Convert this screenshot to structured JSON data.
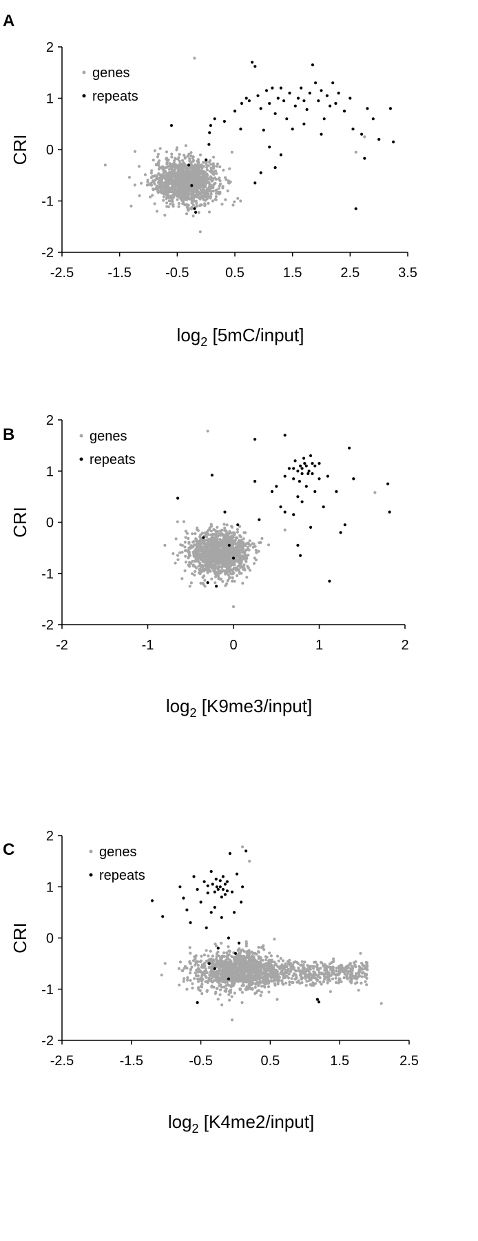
{
  "colors": {
    "genes": "#a6a6a6",
    "repeats": "#000000",
    "axis": "#000000"
  },
  "chart_data": [
    {
      "panel": "A",
      "type": "scatter",
      "title": "",
      "xlabel_main": "log",
      "xlabel_sub": "2",
      "xlabel_rest": " [5mC/input]",
      "ylabel": "CRI",
      "xlim": [
        -2.5,
        3.5
      ],
      "ylim": [
        -2,
        2
      ],
      "xticks": [
        "-2.5",
        "-1.5",
        "-0.5",
        "0.5",
        "1.5",
        "2.5",
        "3.5"
      ],
      "yticks": [
        "2",
        "1",
        "0",
        "-1",
        "-2"
      ],
      "legend": [
        "genes",
        "repeats"
      ],
      "legend_position": "top-left",
      "genes_cluster": {
        "center": [
          -0.35,
          -0.62
        ],
        "spread": [
          0.28,
          0.22
        ],
        "count": 1200
      },
      "genes_outliers": [
        [
          -1.75,
          -0.3
        ],
        [
          -0.2,
          1.78
        ],
        [
          -0.1,
          -1.6
        ],
        [
          0.45,
          -0.05
        ],
        [
          2.6,
          -0.05
        ],
        [
          2.75,
          0.25
        ],
        [
          -0.85,
          -1.2
        ],
        [
          0.3,
          -0.4
        ],
        [
          0.55,
          -0.95
        ],
        [
          -1.3,
          -1.1
        ]
      ],
      "repeats": [
        [
          -0.6,
          0.47
        ],
        [
          -0.3,
          -0.3
        ],
        [
          -0.25,
          -0.7
        ],
        [
          -0.2,
          -1.15
        ],
        [
          -0.18,
          -1.22
        ],
        [
          0.05,
          0.1
        ],
        [
          0.06,
          0.33
        ],
        [
          0.08,
          0.47
        ],
        [
          0.0,
          -0.2
        ],
        [
          0.15,
          0.6
        ],
        [
          0.32,
          0.55
        ],
        [
          0.5,
          0.75
        ],
        [
          0.62,
          0.9
        ],
        [
          0.7,
          1.0
        ],
        [
          0.75,
          0.95
        ],
        [
          0.8,
          1.7
        ],
        [
          0.85,
          1.62
        ],
        [
          0.9,
          1.05
        ],
        [
          0.95,
          0.8
        ],
        [
          1.0,
          0.38
        ],
        [
          1.05,
          1.15
        ],
        [
          1.1,
          0.9
        ],
        [
          1.15,
          1.2
        ],
        [
          1.2,
          0.7
        ],
        [
          1.25,
          1.0
        ],
        [
          1.3,
          1.2
        ],
        [
          1.35,
          0.95
        ],
        [
          1.4,
          0.6
        ],
        [
          1.45,
          1.1
        ],
        [
          1.5,
          0.4
        ],
        [
          1.55,
          0.85
        ],
        [
          1.6,
          1.0
        ],
        [
          1.65,
          1.2
        ],
        [
          1.7,
          0.95
        ],
        [
          1.75,
          0.78
        ],
        [
          1.8,
          1.1
        ],
        [
          1.85,
          1.65
        ],
        [
          1.9,
          1.3
        ],
        [
          1.95,
          0.95
        ],
        [
          2.0,
          1.15
        ],
        [
          2.05,
          0.6
        ],
        [
          2.1,
          1.05
        ],
        [
          2.15,
          0.85
        ],
        [
          2.2,
          1.3
        ],
        [
          2.25,
          0.9
        ],
        [
          2.3,
          1.1
        ],
        [
          2.4,
          0.75
        ],
        [
          2.5,
          1.0
        ],
        [
          2.55,
          0.4
        ],
        [
          2.6,
          -1.15
        ],
        [
          2.7,
          0.3
        ],
        [
          2.75,
          -0.17
        ],
        [
          2.8,
          0.8
        ],
        [
          2.9,
          0.6
        ],
        [
          3.0,
          0.2
        ],
        [
          3.2,
          0.8
        ],
        [
          3.25,
          0.15
        ],
        [
          1.3,
          -0.1
        ],
        [
          1.1,
          0.05
        ],
        [
          1.2,
          -0.35
        ],
        [
          0.85,
          -0.65
        ],
        [
          0.95,
          -0.45
        ],
        [
          1.7,
          0.5
        ],
        [
          0.6,
          0.4
        ],
        [
          2.0,
          0.3
        ]
      ]
    },
    {
      "panel": "B",
      "type": "scatter",
      "title": "",
      "xlabel_main": "log",
      "xlabel_sub": "2",
      "xlabel_rest": " [K9me3/input]",
      "ylabel": "CRI",
      "xlim": [
        -2,
        2
      ],
      "ylim": [
        -2,
        2
      ],
      "xticks": [
        "-2",
        "-1",
        "0",
        "1",
        "2"
      ],
      "yticks": [
        "2",
        "1",
        "0",
        "-1",
        "-2"
      ],
      "legend": [
        "genes",
        "repeats"
      ],
      "legend_position": "top-left",
      "genes_cluster": {
        "center": [
          -0.18,
          -0.62
        ],
        "spread": [
          0.18,
          0.22
        ],
        "count": 1200
      },
      "genes_outliers": [
        [
          -0.3,
          1.78
        ],
        [
          0.0,
          -1.65
        ],
        [
          -0.8,
          -0.45
        ],
        [
          1.65,
          0.58
        ],
        [
          1.4,
          0.85
        ],
        [
          0.6,
          -0.15
        ],
        [
          0.3,
          -0.4
        ],
        [
          -0.6,
          -1.1
        ]
      ],
      "repeats": [
        [
          -0.65,
          0.47
        ],
        [
          -0.35,
          -0.3
        ],
        [
          -0.25,
          0.92
        ],
        [
          -0.1,
          0.2
        ],
        [
          -0.05,
          -0.45
        ],
        [
          0.0,
          -0.7
        ],
        [
          0.05,
          -0.05
        ],
        [
          -0.3,
          -1.18
        ],
        [
          -0.2,
          -1.25
        ],
        [
          0.25,
          1.62
        ],
        [
          0.25,
          0.8
        ],
        [
          0.3,
          0.05
        ],
        [
          0.45,
          0.6
        ],
        [
          0.5,
          0.7
        ],
        [
          0.55,
          0.3
        ],
        [
          0.6,
          1.7
        ],
        [
          0.6,
          0.9
        ],
        [
          0.65,
          1.05
        ],
        [
          0.7,
          0.85
        ],
        [
          0.72,
          1.2
        ],
        [
          0.75,
          0.5
        ],
        [
          0.78,
          1.1
        ],
        [
          0.8,
          0.95
        ],
        [
          0.82,
          1.25
        ],
        [
          0.85,
          0.7
        ],
        [
          0.88,
          1.0
        ],
        [
          0.9,
          -0.1
        ],
        [
          0.92,
          1.15
        ],
        [
          0.95,
          0.6
        ],
        [
          1.0,
          0.85
        ],
        [
          1.05,
          0.3
        ],
        [
          1.1,
          0.9
        ],
        [
          1.12,
          -1.15
        ],
        [
          1.2,
          0.6
        ],
        [
          1.25,
          -0.2
        ],
        [
          1.3,
          -0.05
        ],
        [
          1.35,
          1.45
        ],
        [
          1.4,
          0.85
        ],
        [
          1.8,
          0.75
        ],
        [
          1.82,
          0.2
        ],
        [
          0.78,
          -0.65
        ],
        [
          0.75,
          -0.45
        ],
        [
          0.7,
          0.15
        ],
        [
          0.8,
          0.4
        ],
        [
          0.9,
          1.3
        ],
        [
          0.95,
          1.1
        ],
        [
          0.6,
          0.2
        ],
        [
          0.85,
          1.1
        ],
        [
          0.8,
          1.05
        ],
        [
          0.75,
          1.0
        ],
        [
          0.87,
          0.95
        ],
        [
          0.83,
          1.15
        ],
        [
          0.7,
          1.05
        ],
        [
          0.92,
          0.95
        ],
        [
          0.77,
          0.8
        ],
        [
          1.0,
          1.15
        ]
      ]
    },
    {
      "panel": "C",
      "type": "scatter",
      "title": "",
      "xlabel_main": "log",
      "xlabel_sub": "2",
      "xlabel_rest": " [K4me2/input]",
      "ylabel": "CRI",
      "xlim": [
        -2.5,
        2.5
      ],
      "ylim": [
        -2,
        2
      ],
      "xticks": [
        "-2.5",
        "-1.5",
        "-0.5",
        "0.5",
        "1.5",
        "2.5"
      ],
      "yticks": [
        "2",
        "1",
        "0",
        "-1",
        "-2"
      ],
      "legend": [
        "genes",
        "repeats"
      ],
      "legend_position": "top-left",
      "genes_cluster": {
        "center": [
          0.0,
          -0.65
        ],
        "spread": [
          0.3,
          0.2
        ],
        "count": 1000
      },
      "genes_band": {
        "x_range": [
          0.2,
          1.9
        ],
        "y_center": -0.68,
        "y_spread": 0.12,
        "count": 500
      },
      "genes_outliers": [
        [
          0.1,
          1.78
        ],
        [
          -0.05,
          -1.6
        ],
        [
          2.1,
          -1.28
        ],
        [
          1.8,
          -0.3
        ],
        [
          0.2,
          1.5
        ],
        [
          -0.7,
          -1.0
        ],
        [
          0.4,
          -0.15
        ],
        [
          0.6,
          -1.2
        ]
      ],
      "repeats": [
        [
          -1.2,
          0.73
        ],
        [
          -1.05,
          0.42
        ],
        [
          -0.8,
          1.0
        ],
        [
          -0.75,
          0.78
        ],
        [
          -0.7,
          0.55
        ],
        [
          -0.65,
          0.3
        ],
        [
          -0.6,
          1.2
        ],
        [
          -0.55,
          0.95
        ],
        [
          -0.55,
          -1.26
        ],
        [
          -0.5,
          0.7
        ],
        [
          -0.45,
          1.1
        ],
        [
          -0.42,
          0.2
        ],
        [
          -0.4,
          0.88
        ],
        [
          -0.38,
          -0.5
        ],
        [
          -0.35,
          1.3
        ],
        [
          -0.33,
          1.05
        ],
        [
          -0.3,
          0.6
        ],
        [
          -0.28,
          1.15
        ],
        [
          -0.25,
          0.95
        ],
        [
          -0.22,
          1.0
        ],
        [
          -0.2,
          0.4
        ],
        [
          -0.18,
          1.2
        ],
        [
          -0.15,
          0.85
        ],
        [
          -0.12,
          1.1
        ],
        [
          -0.1,
          0.0
        ],
        [
          -0.08,
          1.65
        ],
        [
          -0.05,
          0.9
        ],
        [
          -0.02,
          0.5
        ],
        [
          0.0,
          -0.3
        ],
        [
          0.02,
          1.25
        ],
        [
          0.05,
          -0.1
        ],
        [
          0.08,
          0.7
        ],
        [
          0.1,
          1.0
        ],
        [
          0.15,
          1.7
        ],
        [
          -0.3,
          -0.6
        ],
        [
          -0.25,
          -0.2
        ],
        [
          -0.1,
          -0.8
        ],
        [
          1.18,
          -1.2
        ],
        [
          1.2,
          -1.25
        ],
        [
          -0.35,
          0.5
        ],
        [
          -0.2,
          0.8
        ],
        [
          -0.15,
          1.05
        ],
        [
          -0.3,
          0.9
        ],
        [
          -0.27,
          1.0
        ],
        [
          -0.18,
          0.95
        ],
        [
          -0.22,
          1.12
        ],
        [
          -0.12,
          0.92
        ],
        [
          -0.4,
          1.02
        ]
      ]
    }
  ]
}
